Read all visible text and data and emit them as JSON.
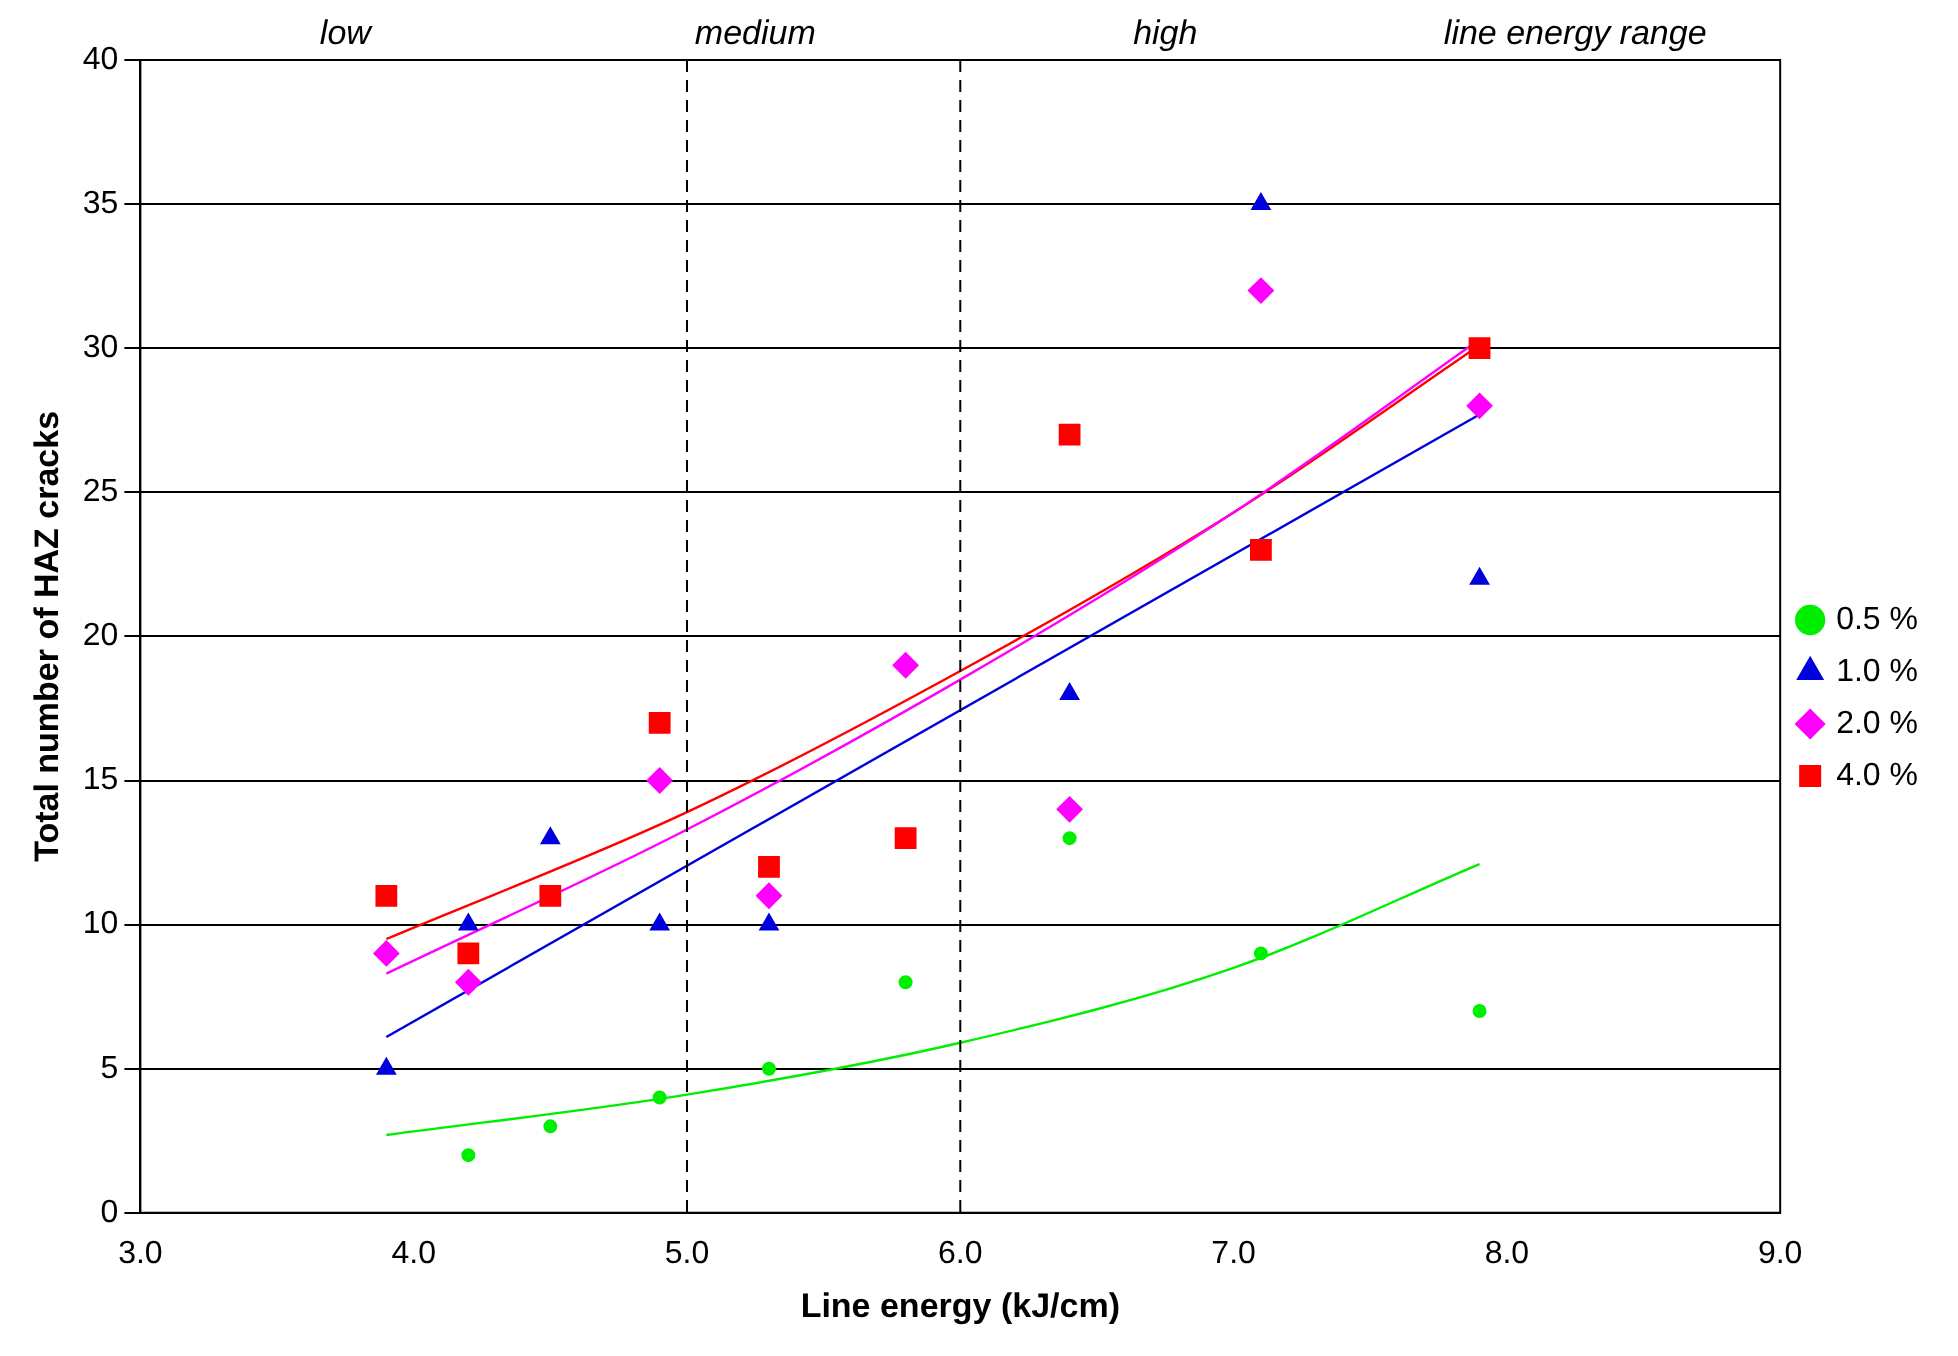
{
  "chart_data": {
    "type": "scatter",
    "xlabel": "Line energy (kJ/cm)",
    "ylabel": "Total number of HAZ cracks",
    "xlim": [
      3,
      9
    ],
    "xticks": [
      {
        "value": 3,
        "label": "3.0"
      },
      {
        "value": 4,
        "label": "4.0"
      },
      {
        "value": 5,
        "label": "5.0"
      },
      {
        "value": 6,
        "label": "6.0"
      },
      {
        "value": 7,
        "label": "7.0"
      },
      {
        "value": 8,
        "label": "8.0"
      },
      {
        "value": 9,
        "label": "9.0"
      }
    ],
    "ylim": [
      0,
      40
    ],
    "yticks": [
      0,
      5,
      10,
      15,
      20,
      25,
      30,
      35,
      40
    ],
    "grid": "y",
    "legend": "right",
    "series": [
      {
        "name": "0.5 %",
        "color": "#00ee00",
        "marker": "circle",
        "x": [
          4.2,
          4.5,
          4.9,
          5.3,
          5.8,
          6.4,
          7.1,
          7.9
        ],
        "values": [
          2,
          3,
          4,
          5,
          8,
          13,
          9,
          7
        ]
      },
      {
        "name": "1.0 %",
        "color": "#0000dd",
        "marker": "triangle",
        "x": [
          3.9,
          4.2,
          4.5,
          4.9,
          5.3,
          6.4,
          7.1,
          7.9
        ],
        "values": [
          5,
          10,
          13,
          10,
          10,
          18,
          35,
          22
        ]
      },
      {
        "name": "2.0 %",
        "color": "#ff00ff",
        "marker": "diamond",
        "x": [
          3.9,
          4.2,
          4.9,
          5.3,
          5.8,
          6.4,
          7.1,
          7.9
        ],
        "values": [
          9,
          8,
          15,
          11,
          19,
          14,
          32,
          28
        ]
      },
      {
        "name": "4.0 %",
        "color": "#ff0000",
        "marker": "square",
        "x": [
          3.9,
          4.2,
          4.5,
          4.9,
          5.3,
          5.8,
          6.4,
          7.1,
          7.9
        ],
        "values": [
          11,
          9,
          11,
          17,
          12,
          13,
          27,
          23,
          30
        ]
      },
      {
        "type": "line",
        "color": "#00ee00",
        "x": [
          3.9,
          5.0,
          6.0,
          7.0,
          7.9
        ],
        "values": [
          2.7,
          4.1,
          5.9,
          8.5,
          12.1
        ]
      },
      {
        "type": "line",
        "color": "#0000dd",
        "x": [
          3.9,
          7.9
        ],
        "values": [
          6.1,
          27.7
        ]
      },
      {
        "type": "line",
        "color": "#ff00ff",
        "x": [
          3.9,
          5.0,
          6.0,
          7.0,
          7.9
        ],
        "values": [
          8.3,
          13.3,
          18.5,
          24.3,
          30.3
        ]
      },
      {
        "type": "line",
        "color": "#ff0000",
        "x": [
          3.9,
          5.0,
          6.0,
          7.0,
          7.9
        ],
        "values": [
          9.5,
          13.9,
          18.8,
          24.3,
          30.1
        ]
      }
    ],
    "ref_lines": [
      {
        "axis": "x",
        "value": 5,
        "line_style": "dashed",
        "color": "#000000"
      },
      {
        "axis": "x",
        "value": 6,
        "line_style": "dashed",
        "color": "#000000"
      }
    ],
    "annotations": [
      "low",
      "medium",
      "high",
      "line energy range"
    ]
  }
}
